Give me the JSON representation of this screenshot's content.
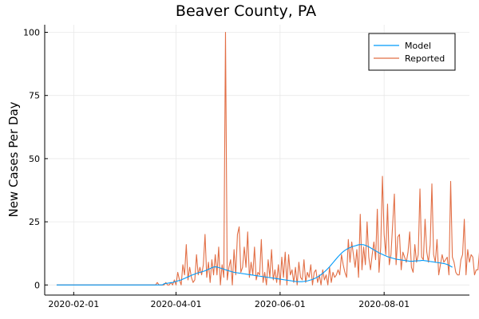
{
  "chart_data": {
    "type": "line",
    "title": "Beaver County, PA",
    "xlabel": "",
    "ylabel": "New Cases Per Day",
    "x_start": "2020-01-22",
    "x_end": "2020-09-12",
    "xlim": [
      "2020-01-15",
      "2020-09-20"
    ],
    "ylim": [
      -4,
      103
    ],
    "xticks": [
      "2020-02-01",
      "2020-04-01",
      "2020-06-01",
      "2020-08-01"
    ],
    "yticks": [
      0,
      25,
      50,
      75,
      100
    ],
    "grid": true,
    "legend_position": "top-right",
    "series": [
      {
        "name": "Model",
        "color": "#009af9",
        "values": [
          0,
          0,
          0,
          0,
          0,
          0,
          0,
          0,
          0,
          0,
          0,
          0,
          0,
          0,
          0,
          0,
          0,
          0,
          0,
          0,
          0,
          0,
          0,
          0,
          0,
          0,
          0,
          0,
          0,
          0,
          0,
          0,
          0,
          0,
          0,
          0,
          0,
          0,
          0,
          0,
          0,
          0,
          0,
          0,
          0,
          0,
          0,
          0,
          0,
          0,
          0,
          0,
          0,
          0,
          0,
          0,
          0,
          0,
          0,
          0,
          0,
          0,
          0,
          0.5,
          0.6,
          0.7,
          0.8,
          0.9,
          1.0,
          1.2,
          1.4,
          1.6,
          1.8,
          2.0,
          2.3,
          2.6,
          2.9,
          3.2,
          3.5,
          3.8,
          4.1,
          4.3,
          4.6,
          4.8,
          5.0,
          5.2,
          5.4,
          5.6,
          5.9,
          6.2,
          6.5,
          6.8,
          7.1,
          7.2,
          7.1,
          6.9,
          6.7,
          6.5,
          6.3,
          6.0,
          5.8,
          5.6,
          5.4,
          5.2,
          5.0,
          4.9,
          4.8,
          4.7,
          4.6,
          4.5,
          4.4,
          4.3,
          4.2,
          4.1,
          4.0,
          3.9,
          3.8,
          3.7,
          3.6,
          3.5,
          3.4,
          3.3,
          3.2,
          3.1,
          3.0,
          2.9,
          2.8,
          2.7,
          2.6,
          2.5,
          2.4,
          2.3,
          2.2,
          2.1,
          2.0,
          1.9,
          1.8,
          1.7,
          1.6,
          1.5,
          1.4,
          1.35,
          1.3,
          1.3,
          1.3,
          1.4,
          1.5,
          1.6,
          1.8,
          2.0,
          2.2,
          2.5,
          2.8,
          3.2,
          3.6,
          4.1,
          4.6,
          5.2,
          5.8,
          6.5,
          7.2,
          8.0,
          8.8,
          9.6,
          10.4,
          11.2,
          11.9,
          12.6,
          13.2,
          13.7,
          14.1,
          14.5,
          14.8,
          15.1,
          15.3,
          15.5,
          15.7,
          15.9,
          16.0,
          16.0,
          15.9,
          15.7,
          15.4,
          15.1,
          14.7,
          14.3,
          13.9,
          13.5,
          13.1,
          12.7,
          12.4,
          12.1,
          11.8,
          11.5,
          11.2,
          11.0,
          10.8,
          10.6,
          10.4,
          10.2,
          10.1,
          10.0,
          9.9,
          9.8,
          9.7,
          9.6,
          9.5,
          9.4,
          9.4,
          9.4,
          9.5,
          9.5,
          9.6,
          9.6,
          9.7,
          9.7,
          9.6,
          9.5,
          9.4,
          9.3,
          9.2,
          9.1,
          9.0,
          8.9,
          8.8,
          8.7,
          8.6,
          8.5,
          8.3,
          8.1,
          7.8,
          7.4,
          7.0
        ]
      },
      {
        "name": "Reported",
        "color": "#e26f46",
        "values": [
          0,
          0,
          0,
          0,
          0,
          0,
          0,
          0,
          0,
          0,
          0,
          0,
          0,
          0,
          0,
          0,
          0,
          0,
          0,
          0,
          0,
          0,
          0,
          0,
          0,
          0,
          0,
          0,
          0,
          0,
          0,
          0,
          0,
          0,
          0,
          0,
          0,
          0,
          0,
          0,
          0,
          0,
          0,
          0,
          0,
          0,
          0,
          0,
          0,
          0,
          0,
          0,
          0,
          0,
          0,
          0,
          0,
          0,
          0,
          1,
          0,
          0,
          0,
          0,
          1,
          0,
          0,
          1,
          0,
          2,
          0,
          5,
          2,
          0,
          8,
          4,
          16,
          2,
          7,
          3,
          1,
          2,
          12,
          4,
          7,
          4,
          8,
          20,
          3,
          9,
          1,
          10,
          4,
          12,
          4,
          15,
          0,
          8,
          3,
          100,
          2,
          7,
          10,
          0,
          14,
          4,
          20,
          23,
          5,
          7,
          15,
          7,
          21,
          3,
          9,
          4,
          15,
          2,
          5,
          4,
          18,
          1,
          5,
          0,
          10,
          3,
          14,
          2,
          6,
          1,
          8,
          0,
          11,
          3,
          13,
          0,
          12,
          4,
          6,
          1,
          7,
          0,
          9,
          3,
          2,
          10,
          1,
          5,
          3,
          8,
          0,
          5,
          6,
          1,
          4,
          0,
          6,
          2,
          4,
          0,
          7,
          1,
          5,
          3,
          4,
          6,
          4,
          12,
          8,
          5,
          3,
          18,
          9,
          17,
          12,
          7,
          14,
          3,
          28,
          6,
          15,
          8,
          25,
          11,
          6,
          12,
          17,
          10,
          30,
          5,
          15,
          43,
          20,
          12,
          32,
          8,
          12,
          24,
          36,
          8,
          19,
          20,
          6,
          13,
          11,
          9,
          13,
          21,
          7,
          5,
          16,
          9,
          12,
          38,
          11,
          10,
          26,
          13,
          9,
          16,
          40,
          12,
          9,
          18,
          4,
          8,
          12,
          9,
          10,
          11,
          4,
          41,
          11,
          9,
          5,
          4,
          4,
          10,
          12,
          26,
          4,
          14,
          9,
          12,
          11,
          4,
          6,
          6,
          14,
          2
        ]
      }
    ]
  }
}
